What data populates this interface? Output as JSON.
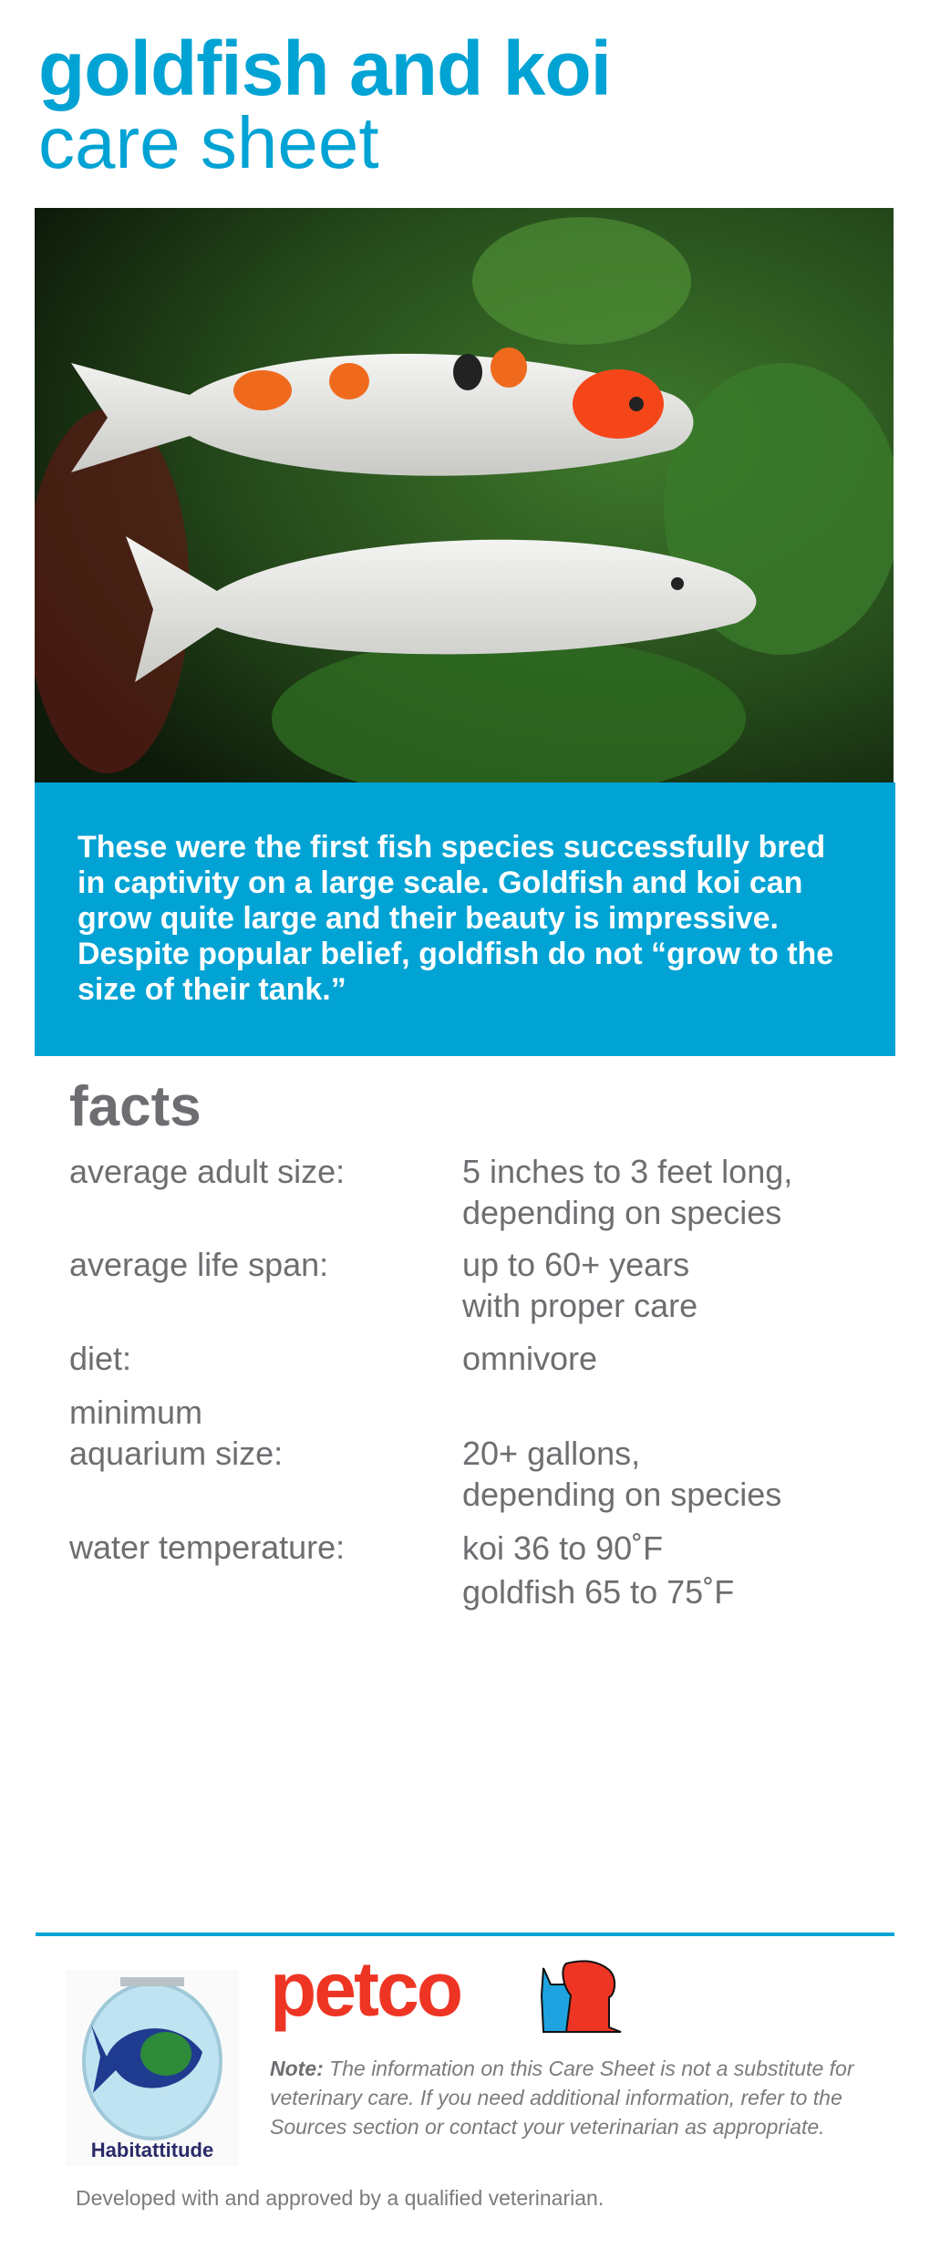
{
  "header": {
    "title_line1": "goldfish and koi",
    "title_line2": "care sheet"
  },
  "intro": "These were the first fish species successfully bred in captivity on a large scale. Goldfish and koi can grow quite large and their beauty is impressive. Despite popular belief, goldfish do not “grow to the size of their tank.”",
  "facts": {
    "heading": "facts",
    "rows": [
      {
        "label": "average adult size:",
        "value": "5 inches to 3 feet long,\n depending on species"
      },
      {
        "label": "average life span:",
        "value": "up to 60+ years\n with proper care"
      },
      {
        "label": "diet:",
        "value": "omnivore"
      },
      {
        "label": "minimum\naquarium size:",
        "value": "20+ gallons,\ndepending on species"
      },
      {
        "label": "water temperature:",
        "value": "koi 36 to 90˚F\ngoldfish 65 to 75˚F"
      }
    ]
  },
  "footer": {
    "habitat_logo": "Habitattitude",
    "petco_logo": "petco",
    "note_label": "Note:",
    "note_text": " The information on this Care Sheet is not a substitute for veterinary care. If you need additional information, refer to the Sources section or contact your veterinarian as appropriate.",
    "developed": "Developed with and approved by a qualified veterinarian."
  },
  "colors": {
    "accent": "#00a3d4",
    "text": "#6d6e71",
    "petco_red": "#ee3524",
    "petco_blue": "#1fa3e0"
  }
}
